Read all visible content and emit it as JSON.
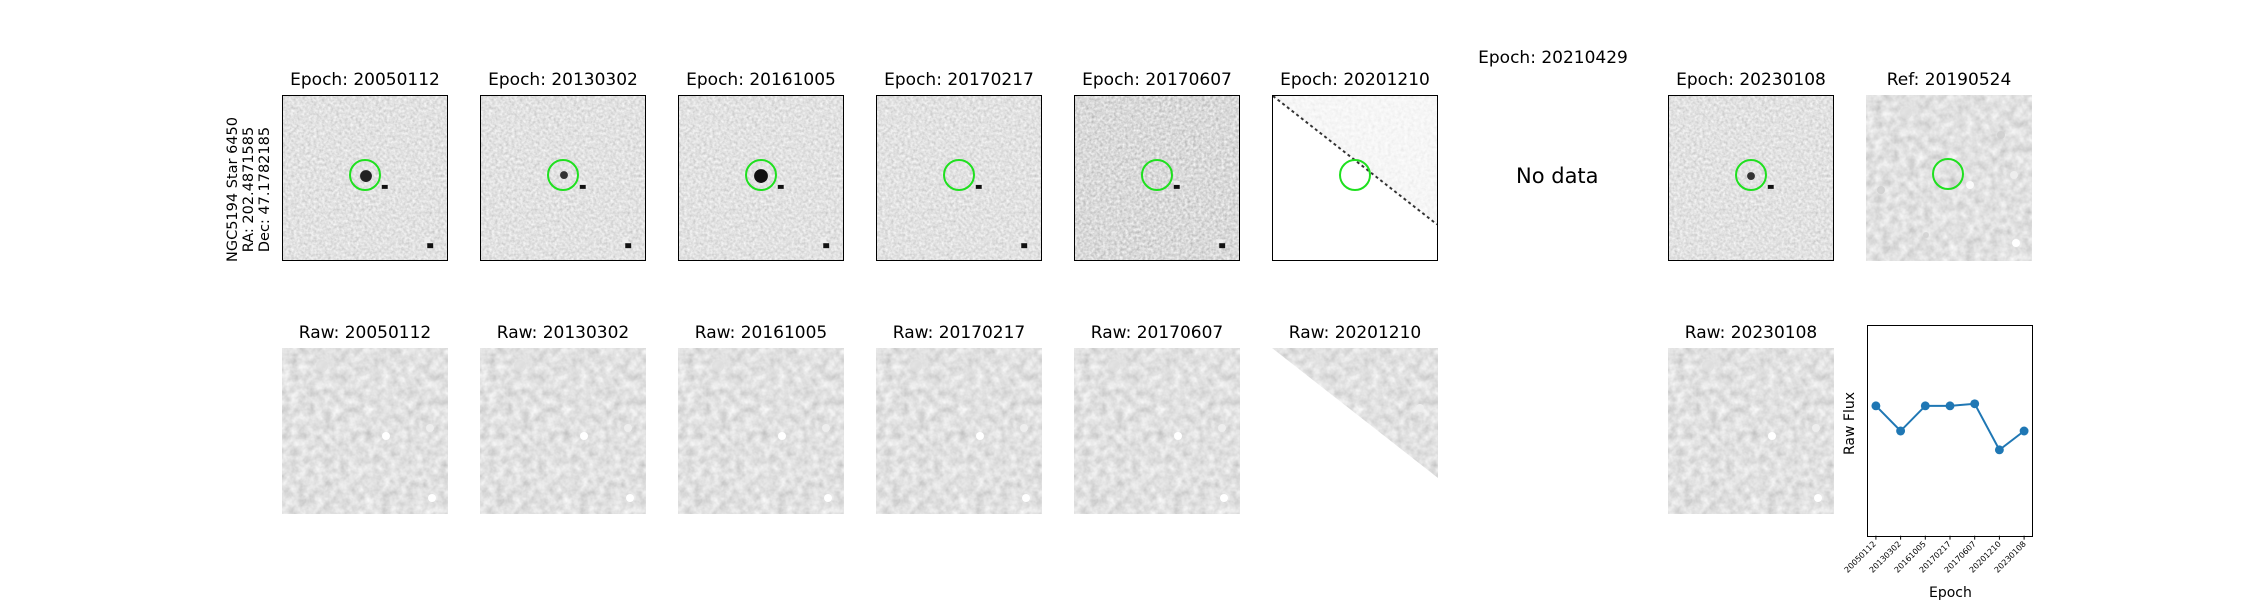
{
  "side_label": {
    "line1": "NGC5194 Star 6450",
    "line2": "RA: 202.4871585",
    "line3": "Dec: 47.1782185"
  },
  "top_row": [
    {
      "title": "Epoch: 20050112"
    },
    {
      "title": "Epoch: 20130302"
    },
    {
      "title": "Epoch: 20161005"
    },
    {
      "title": "Epoch: 20170217"
    },
    {
      "title": "Epoch: 20170607"
    },
    {
      "title": "Epoch: 20201210"
    },
    {
      "title": "Epoch: 20210429",
      "no_data": "No data"
    },
    {
      "title": "Epoch: 20230108"
    },
    {
      "title": "Ref: 20190524"
    }
  ],
  "bottom_row": [
    {
      "title": "Raw: 20050112"
    },
    {
      "title": "Raw: 20130302"
    },
    {
      "title": "Raw: 20161005"
    },
    {
      "title": "Raw: 20170217"
    },
    {
      "title": "Raw: 20170607"
    },
    {
      "title": "Raw: 20201210"
    },
    {
      "title": "Raw: 20230108"
    }
  ],
  "chart_data": {
    "type": "line",
    "xlabel": "Epoch",
    "ylabel": "Raw Flux",
    "categories": [
      "20050112",
      "20130302",
      "20161005",
      "20170217",
      "20170607",
      "20201210",
      "20230108"
    ],
    "values": [
      0.62,
      0.5,
      0.62,
      0.62,
      0.63,
      0.41,
      0.5
    ],
    "ylim": [
      0,
      1
    ],
    "color": "#1f77b4"
  },
  "colors": {
    "marker_circle": "#1fe01f",
    "line": "#1f77b4"
  }
}
